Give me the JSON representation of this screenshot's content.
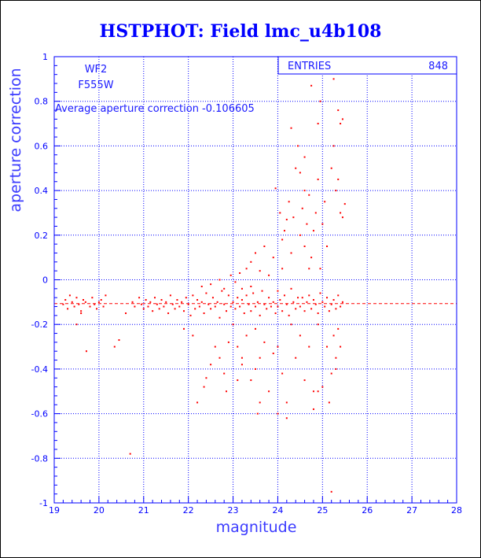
{
  "chart_data": {
    "type": "scatter",
    "title": "HSTPHOT: Field lmc_u4b108",
    "xlabel": "magnitude",
    "ylabel": "aperture correction",
    "xlim": [
      19,
      28
    ],
    "ylim": [
      -1,
      1
    ],
    "x_ticks": [
      "19",
      "20",
      "21",
      "22",
      "23",
      "24",
      "25",
      "26",
      "27",
      "28"
    ],
    "y_ticks": [
      "1",
      "0.8",
      "0.6",
      "0.4",
      "0.2",
      "0",
      "-0.2",
      "-0.4",
      "-0.6",
      "-0.8",
      "-1"
    ],
    "grid": true,
    "stats_box": {
      "label": "ENTRIES",
      "value": "848"
    },
    "annotations": {
      "chip": "WF2",
      "filter": "F555W",
      "average": "Average aperture correction -0.106605"
    },
    "average_line": -0.106605,
    "point_color": "#ff0000",
    "axis_color": "#0000ff",
    "series": [
      {
        "points": [
          [
            19.2,
            -0.11
          ],
          [
            19.25,
            -0.09
          ],
          [
            19.3,
            -0.13
          ],
          [
            19.35,
            -0.07
          ],
          [
            19.4,
            -0.1
          ],
          [
            19.45,
            -0.12
          ],
          [
            19.5,
            -0.08
          ],
          [
            19.55,
            -0.11
          ],
          [
            19.6,
            -0.14
          ],
          [
            19.65,
            -0.09
          ],
          [
            19.7,
            -0.1
          ],
          [
            19.72,
            -0.32
          ],
          [
            19.8,
            -0.12
          ],
          [
            19.85,
            -0.08
          ],
          [
            19.9,
            -0.11
          ],
          [
            19.95,
            -0.13
          ],
          [
            20.0,
            -0.1
          ],
          [
            20.05,
            -0.09
          ],
          [
            20.1,
            -0.12
          ],
          [
            20.15,
            -0.07
          ],
          [
            19.5,
            -0.2
          ],
          [
            19.6,
            -0.15
          ],
          [
            20.35,
            -0.3
          ],
          [
            20.45,
            -0.27
          ],
          [
            20.7,
            -0.78
          ],
          [
            20.6,
            -0.15
          ],
          [
            20.75,
            -0.1
          ],
          [
            20.8,
            -0.12
          ],
          [
            20.9,
            -0.08
          ],
          [
            20.95,
            -0.11
          ],
          [
            21.0,
            -0.13
          ],
          [
            21.05,
            -0.09
          ],
          [
            21.1,
            -0.12
          ],
          [
            21.15,
            -0.1
          ],
          [
            21.2,
            -0.14
          ],
          [
            21.25,
            -0.08
          ],
          [
            21.3,
            -0.11
          ],
          [
            21.35,
            -0.13
          ],
          [
            21.4,
            -0.09
          ],
          [
            21.45,
            -0.12
          ],
          [
            21.5,
            -0.1
          ],
          [
            21.55,
            -0.15
          ],
          [
            21.6,
            -0.07
          ],
          [
            21.65,
            -0.11
          ],
          [
            21.7,
            -0.13
          ],
          [
            21.75,
            -0.09
          ],
          [
            21.8,
            -0.12
          ],
          [
            21.85,
            -0.1
          ],
          [
            21.9,
            -0.14
          ],
          [
            21.95,
            -0.08
          ],
          [
            22.0,
            -0.11
          ],
          [
            22.05,
            -0.16
          ],
          [
            22.1,
            -0.07
          ],
          [
            22.15,
            -0.13
          ],
          [
            22.2,
            -0.09
          ],
          [
            22.25,
            -0.12
          ],
          [
            22.3,
            -0.1
          ],
          [
            22.35,
            -0.15
          ],
          [
            22.4,
            -0.06
          ],
          [
            22.45,
            -0.11
          ],
          [
            22.5,
            -0.13
          ],
          [
            22.55,
            -0.08
          ],
          [
            22.6,
            -0.12
          ],
          [
            22.65,
            -0.1
          ],
          [
            22.7,
            -0.17
          ],
          [
            22.75,
            -0.05
          ],
          [
            22.8,
            -0.11
          ],
          [
            22.85,
            -0.14
          ],
          [
            22.9,
            -0.07
          ],
          [
            22.95,
            -0.12
          ],
          [
            21.9,
            -0.22
          ],
          [
            22.1,
            -0.25
          ],
          [
            22.2,
            -0.55
          ],
          [
            22.35,
            -0.48
          ],
          [
            22.4,
            -0.44
          ],
          [
            22.6,
            -0.3
          ],
          [
            22.7,
            -0.35
          ],
          [
            22.8,
            -0.42
          ],
          [
            22.9,
            -0.28
          ],
          [
            23.0,
            -0.2
          ],
          [
            22.3,
            -0.03
          ],
          [
            22.5,
            -0.02
          ],
          [
            22.7,
            0.0
          ],
          [
            22.8,
            -0.04
          ],
          [
            22.95,
            0.02
          ],
          [
            23.05,
            -0.01
          ],
          [
            23.15,
            0.03
          ],
          [
            23.2,
            -0.04
          ],
          [
            23.3,
            0.05
          ],
          [
            23.4,
            -0.03
          ],
          [
            23.0,
            -0.1
          ],
          [
            23.05,
            -0.13
          ],
          [
            23.1,
            -0.08
          ],
          [
            23.15,
            -0.12
          ],
          [
            23.2,
            -0.09
          ],
          [
            23.25,
            -0.15
          ],
          [
            23.3,
            -0.07
          ],
          [
            23.35,
            -0.11
          ],
          [
            23.4,
            -0.14
          ],
          [
            23.45,
            -0.06
          ],
          [
            23.5,
            -0.12
          ],
          [
            23.55,
            -0.1
          ],
          [
            23.6,
            -0.16
          ],
          [
            23.65,
            -0.05
          ],
          [
            23.7,
            -0.11
          ],
          [
            23.75,
            -0.13
          ],
          [
            23.8,
            -0.08
          ],
          [
            23.85,
            -0.12
          ],
          [
            23.9,
            -0.1
          ],
          [
            23.95,
            -0.15
          ],
          [
            23.1,
            -0.3
          ],
          [
            23.2,
            -0.38
          ],
          [
            23.3,
            -0.25
          ],
          [
            23.4,
            -0.45
          ],
          [
            23.5,
            -0.22
          ],
          [
            23.55,
            -0.6
          ],
          [
            23.6,
            -0.35
          ],
          [
            23.7,
            -0.28
          ],
          [
            23.8,
            -0.5
          ],
          [
            23.9,
            -0.33
          ],
          [
            23.4,
            0.08
          ],
          [
            23.5,
            0.12
          ],
          [
            23.6,
            0.04
          ],
          [
            23.7,
            0.15
          ],
          [
            23.8,
            0.02
          ],
          [
            23.9,
            0.1
          ],
          [
            23.95,
            0.41
          ],
          [
            24.0,
            -0.05
          ],
          [
            24.05,
            0.3
          ],
          [
            24.1,
            0.18
          ],
          [
            24.0,
            -0.12
          ],
          [
            24.05,
            -0.09
          ],
          [
            24.1,
            -0.14
          ],
          [
            24.15,
            -0.07
          ],
          [
            24.2,
            -0.11
          ],
          [
            24.25,
            -0.16
          ],
          [
            24.3,
            -0.04
          ],
          [
            24.35,
            -0.1
          ],
          [
            24.4,
            -0.13
          ],
          [
            24.45,
            -0.08
          ],
          [
            24.1,
            0.05
          ],
          [
            24.15,
            0.22
          ],
          [
            24.2,
            0.27
          ],
          [
            24.25,
            0.35
          ],
          [
            24.3,
            0.12
          ],
          [
            24.35,
            0.28
          ],
          [
            24.4,
            0.5
          ],
          [
            24.45,
            0.6
          ],
          [
            24.5,
            0.2
          ],
          [
            24.55,
            0.32
          ],
          [
            24.6,
            0.15
          ],
          [
            24.65,
            0.25
          ],
          [
            24.7,
            0.38
          ],
          [
            24.75,
            0.1
          ],
          [
            24.8,
            0.22
          ],
          [
            24.85,
            0.3
          ],
          [
            24.9,
            0.45
          ],
          [
            24.95,
            0.05
          ],
          [
            24.6,
            0.4
          ],
          [
            24.7,
            0.05
          ],
          [
            24.0,
            -0.3
          ],
          [
            24.1,
            -0.42
          ],
          [
            24.2,
            -0.55
          ],
          [
            24.3,
            -0.2
          ],
          [
            24.4,
            -0.35
          ],
          [
            24.5,
            -0.25
          ],
          [
            24.6,
            -0.45
          ],
          [
            24.7,
            -0.3
          ],
          [
            24.8,
            -0.5
          ],
          [
            24.9,
            -0.2
          ],
          [
            24.5,
            -0.12
          ],
          [
            24.55,
            -0.08
          ],
          [
            24.6,
            -0.14
          ],
          [
            24.65,
            -0.1
          ],
          [
            24.7,
            -0.07
          ],
          [
            24.75,
            -0.13
          ],
          [
            24.8,
            -0.09
          ],
          [
            24.85,
            -0.11
          ],
          [
            24.9,
            -0.15
          ],
          [
            24.95,
            -0.06
          ],
          [
            24.75,
            0.87
          ],
          [
            24.95,
            0.8
          ],
          [
            24.9,
            0.7
          ],
          [
            24.3,
            0.68
          ],
          [
            24.5,
            0.48
          ],
          [
            24.6,
            0.55
          ],
          [
            25.25,
            0.9
          ],
          [
            25.35,
            0.76
          ],
          [
            25.4,
            0.7
          ],
          [
            25.45,
            0.72
          ],
          [
            25.0,
            0.25
          ],
          [
            25.05,
            0.35
          ],
          [
            25.1,
            0.15
          ],
          [
            25.2,
            0.5
          ],
          [
            25.25,
            0.6
          ],
          [
            25.3,
            0.4
          ],
          [
            25.35,
            0.45
          ],
          [
            25.4,
            0.3
          ],
          [
            25.45,
            0.28
          ],
          [
            25.5,
            0.34
          ],
          [
            25.0,
            -0.1
          ],
          [
            25.05,
            -0.12
          ],
          [
            25.1,
            -0.08
          ],
          [
            25.15,
            -0.14
          ],
          [
            25.2,
            -0.11
          ],
          [
            25.25,
            -0.09
          ],
          [
            25.3,
            -0.13
          ],
          [
            25.35,
            -0.07
          ],
          [
            25.4,
            -0.12
          ],
          [
            25.45,
            -0.1
          ],
          [
            25.1,
            -0.3
          ],
          [
            25.2,
            -0.42
          ],
          [
            25.25,
            -0.25
          ],
          [
            25.3,
            -0.35
          ],
          [
            25.35,
            -0.22
          ],
          [
            25.4,
            -0.3
          ],
          [
            25.15,
            -0.55
          ],
          [
            25.2,
            -0.95
          ],
          [
            25.3,
            -0.4
          ],
          [
            25.0,
            -0.48
          ],
          [
            23.2,
            -0.35
          ],
          [
            23.5,
            -0.4
          ],
          [
            23.6,
            -0.55
          ],
          [
            24.0,
            -0.6
          ],
          [
            24.2,
            -0.62
          ],
          [
            24.9,
            -0.5
          ],
          [
            24.8,
            -0.58
          ],
          [
            22.85,
            -0.5
          ],
          [
            23.1,
            -0.45
          ],
          [
            22.5,
            -0.38
          ]
        ]
      }
    ]
  }
}
